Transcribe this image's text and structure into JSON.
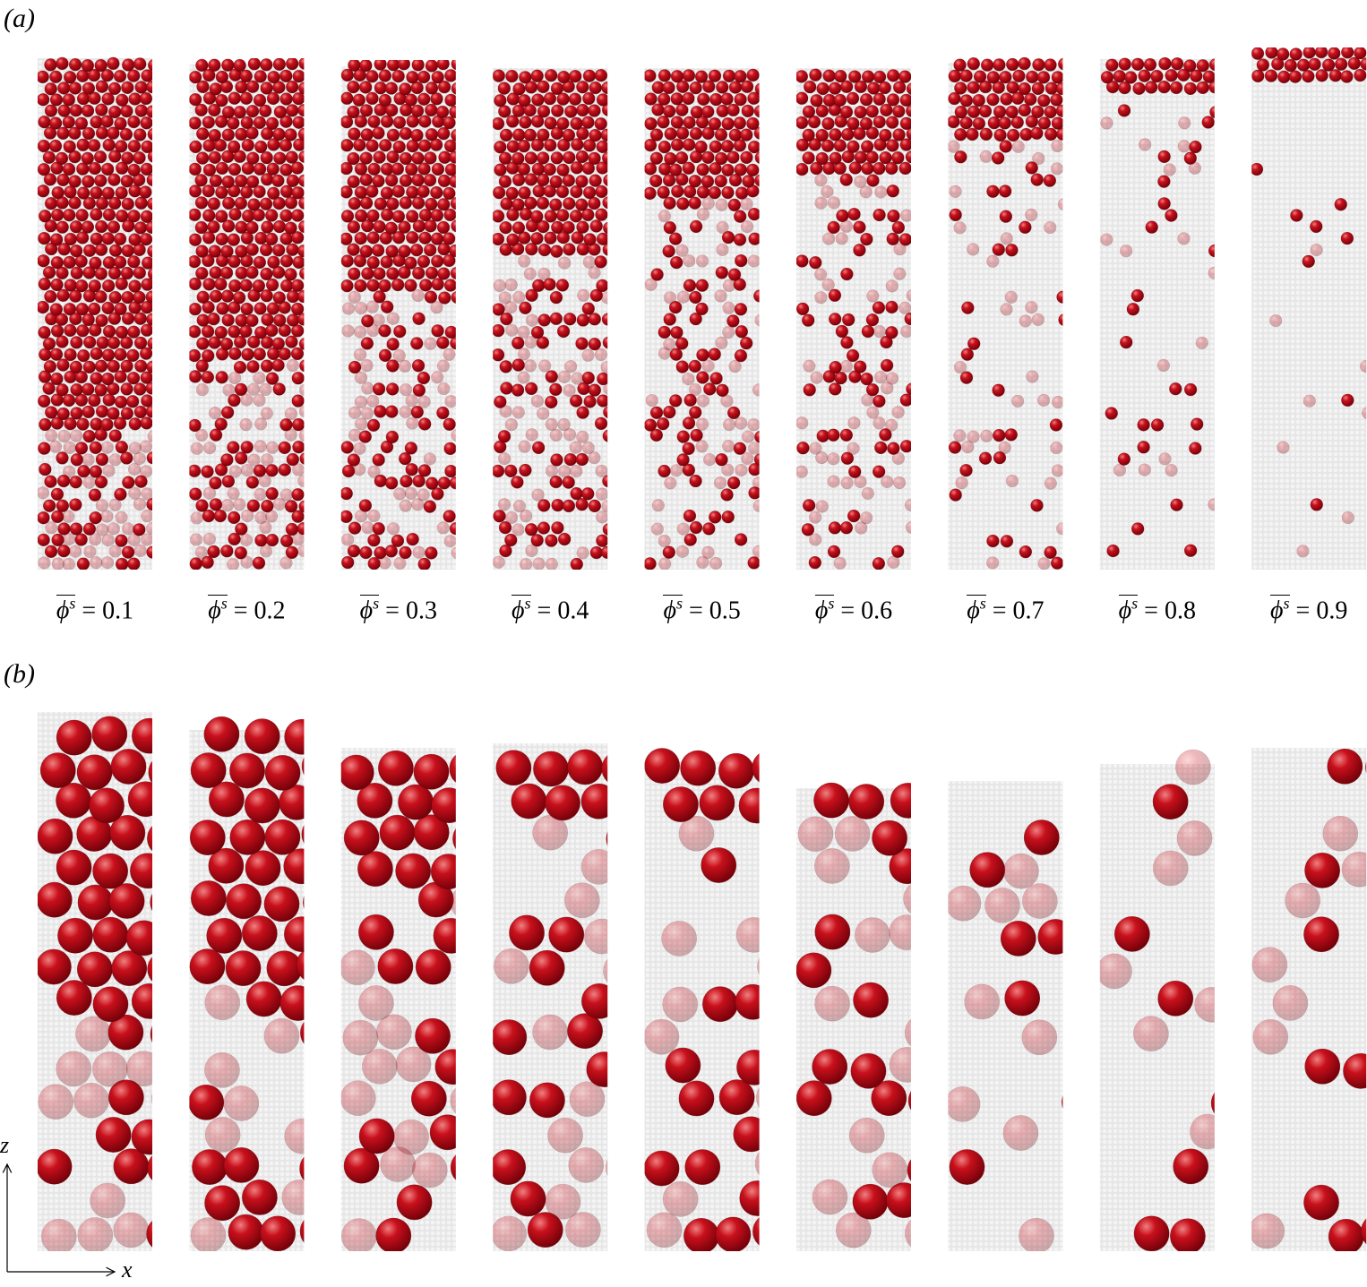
{
  "panels": [
    {
      "label": "(a)",
      "captions": [
        {
          "symbol": "ϕ",
          "superscript": "s",
          "text": "= 0.1"
        },
        {
          "symbol": "ϕ",
          "superscript": "s",
          "text": "= 0.2"
        },
        {
          "symbol": "ϕ",
          "superscript": "s",
          "text": "= 0.3"
        },
        {
          "symbol": "ϕ",
          "superscript": "s",
          "text": "= 0.4"
        },
        {
          "symbol": "ϕ",
          "superscript": "s",
          "text": "= 0.5"
        },
        {
          "symbol": "ϕ",
          "superscript": "s",
          "text": "= 0.6"
        },
        {
          "symbol": "ϕ",
          "superscript": "s",
          "text": "= 0.7"
        },
        {
          "symbol": "ϕ",
          "superscript": "s",
          "text": "= 0.8"
        },
        {
          "symbol": "ϕ",
          "superscript": "s",
          "text": "= 0.9"
        }
      ]
    },
    {
      "label": "(b)"
    }
  ],
  "axes": {
    "vertical": "z",
    "horizontal": "x"
  }
}
